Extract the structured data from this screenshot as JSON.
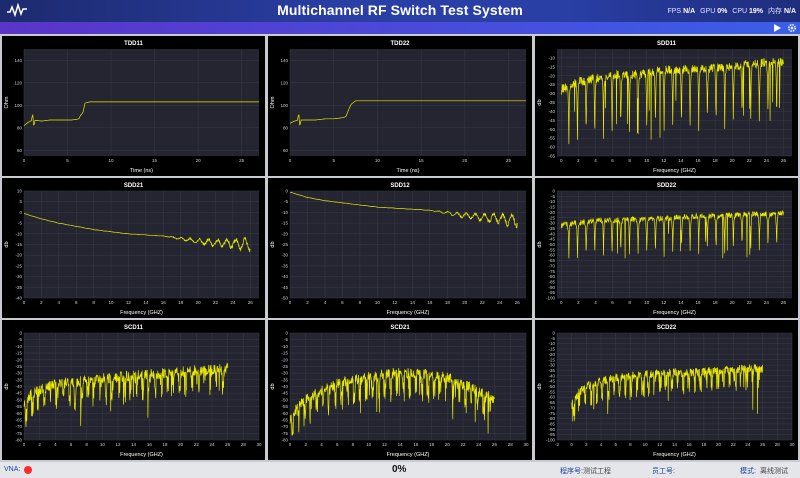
{
  "app": {
    "title": "Multichannel RF Switch Test System",
    "stats": {
      "fps_label": "FPS",
      "fps_value": "N/A",
      "gpu_label": "GPU",
      "gpu_value": "0%",
      "cpu_label": "CPU",
      "cpu_value": "19%",
      "mem_label": "内存",
      "mem_value": "N/A"
    }
  },
  "toolbar": {
    "run_icon": "play-icon",
    "settings_icon": "gear-icon"
  },
  "colors": {
    "trace": "#e8e800",
    "plot_bg": "#242530",
    "panel_bg": "#000000",
    "grid": "#3a3c4a"
  },
  "status": {
    "vna_label": "VNA:",
    "vna_state_color": "#ff2a2a",
    "progress": "0%",
    "serial_label": "程序号:",
    "serial_value": "测试工程",
    "operator_label": "员工号:",
    "operator_value": "",
    "mode_label": "模式:",
    "mode_value": "离线测试"
  },
  "chart_data": [
    {
      "id": "tdd11",
      "type": "line",
      "title": "TDD11",
      "xlabel": "Time (ns)",
      "ylabel": "Ohm",
      "xlim": [
        0,
        27
      ],
      "ylim": [
        55,
        150
      ],
      "xticks": [
        0,
        5,
        10,
        15,
        20,
        25
      ],
      "yticks": [
        60,
        80,
        100,
        120,
        140
      ],
      "series": [
        {
          "profile": "tdd",
          "values": [
            [
              0,
              82
            ],
            [
              0.5,
              85
            ],
            [
              1,
              87
            ],
            [
              2,
              86
            ],
            [
              3,
              87
            ],
            [
              4,
              87
            ],
            [
              5,
              87
            ],
            [
              5.5,
              87
            ],
            [
              6,
              87.5
            ],
            [
              6.3,
              88
            ],
            [
              6.5,
              91
            ],
            [
              6.8,
              94
            ],
            [
              7,
              102
            ],
            [
              7.5,
              103
            ],
            [
              8,
              103
            ],
            [
              10,
              103
            ],
            [
              15,
              103
            ],
            [
              20,
              103
            ],
            [
              27,
              103
            ]
          ]
        }
      ]
    },
    {
      "id": "tdd22",
      "type": "line",
      "title": "TDD22",
      "xlabel": "Time (ns)",
      "ylabel": "Ohm",
      "xlim": [
        0,
        27
      ],
      "ylim": [
        55,
        150
      ],
      "xticks": [
        0,
        5,
        10,
        15,
        20,
        25
      ],
      "yticks": [
        60,
        80,
        100,
        120,
        140
      ],
      "series": [
        {
          "profile": "tdd",
          "values": [
            [
              0,
              84
            ],
            [
              0.5,
              86
            ],
            [
              1,
              87
            ],
            [
              2,
              87
            ],
            [
              3,
              87
            ],
            [
              4,
              88
            ],
            [
              5,
              88
            ],
            [
              6,
              89
            ],
            [
              6.4,
              90
            ],
            [
              6.7,
              96
            ],
            [
              7,
              101
            ],
            [
              7.5,
              104
            ],
            [
              8,
              104
            ],
            [
              10,
              104
            ],
            [
              15,
              104
            ],
            [
              20,
              104
            ],
            [
              27,
              104
            ]
          ]
        }
      ]
    },
    {
      "id": "sdd11",
      "type": "line",
      "title": "SDD11",
      "xlabel": "Frequency (GHZ)",
      "ylabel": "db",
      "xlim": [
        -0.5,
        27
      ],
      "ylim": [
        -65,
        -5
      ],
      "xticks": [
        0,
        2,
        4,
        6,
        8,
        10,
        12,
        14,
        16,
        18,
        20,
        22,
        24,
        26
      ],
      "yticks": [
        -10,
        -15,
        -20,
        -25,
        -30,
        -35,
        -40,
        -45,
        -50,
        -55,
        -60,
        -65
      ],
      "series": [
        {
          "profile": "return-loss",
          "values": [
            [
              0,
              -28
            ],
            [
              2,
              -24
            ],
            [
              4,
              -22
            ],
            [
              6,
              -20
            ],
            [
              8,
              -20
            ],
            [
              10,
              -19
            ],
            [
              12,
              -17
            ],
            [
              14,
              -17
            ],
            [
              16,
              -17
            ],
            [
              18,
              -16
            ],
            [
              20,
              -15
            ],
            [
              22,
              -14
            ],
            [
              24,
              -13
            ],
            [
              26,
              -13
            ]
          ]
        }
      ]
    },
    {
      "id": "sdd21",
      "type": "line",
      "title": "SDD21",
      "xlabel": "Frequency (GHZ)",
      "ylabel": "db",
      "xlim": [
        0,
        27
      ],
      "ylim": [
        -40,
        10
      ],
      "xticks": [
        0,
        2,
        4,
        6,
        8,
        10,
        12,
        14,
        16,
        18,
        20,
        22,
        24,
        26
      ],
      "yticks": [
        10,
        5,
        0,
        -5,
        -10,
        -15,
        -20,
        -25,
        -30,
        -35,
        -40
      ],
      "series": [
        {
          "profile": "insertion-loss",
          "values": [
            [
              0,
              -0.5
            ],
            [
              2,
              -3
            ],
            [
              4,
              -5
            ],
            [
              6,
              -6.5
            ],
            [
              8,
              -8
            ],
            [
              10,
              -9
            ],
            [
              12,
              -10
            ],
            [
              14,
              -10.5
            ],
            [
              16,
              -11
            ],
            [
              18,
              -12
            ],
            [
              20,
              -13
            ],
            [
              22,
              -13.5
            ],
            [
              24,
              -13.5
            ],
            [
              26,
              -14
            ]
          ]
        }
      ]
    },
    {
      "id": "sdd12",
      "type": "line",
      "title": "SDD12",
      "xlabel": "Frequency (GHZ)",
      "ylabel": "db",
      "xlim": [
        0,
        27
      ],
      "ylim": [
        -50,
        0
      ],
      "xticks": [
        0,
        2,
        4,
        6,
        8,
        10,
        12,
        14,
        16,
        18,
        20,
        22,
        24,
        26
      ],
      "yticks": [
        0,
        -5,
        -10,
        -15,
        -20,
        -25,
        -30,
        -35,
        -40,
        -45,
        -50
      ],
      "series": [
        {
          "profile": "insertion-loss",
          "values": [
            [
              0,
              -0.5
            ],
            [
              2,
              -3
            ],
            [
              4,
              -4.5
            ],
            [
              6,
              -5.5
            ],
            [
              8,
              -6.5
            ],
            [
              10,
              -7.5
            ],
            [
              12,
              -8
            ],
            [
              14,
              -8.5
            ],
            [
              16,
              -9
            ],
            [
              18,
              -10
            ],
            [
              20,
              -11
            ],
            [
              22,
              -11.5
            ],
            [
              24,
              -12
            ],
            [
              26,
              -12.5
            ]
          ]
        }
      ]
    },
    {
      "id": "sdd22",
      "type": "line",
      "title": "SDD22",
      "xlabel": "Frequency (GHZ)",
      "ylabel": "db",
      "xlim": [
        -0.5,
        27
      ],
      "ylim": [
        -100,
        0
      ],
      "xticks": [
        0,
        2,
        4,
        6,
        8,
        10,
        12,
        14,
        16,
        18,
        20,
        22,
        24,
        26
      ],
      "yticks": [
        0,
        -5,
        -10,
        -15,
        -20,
        -25,
        -30,
        -35,
        -40,
        -45,
        -50,
        -55,
        -60,
        -65,
        -70,
        -75,
        -80,
        -85,
        -90,
        -95,
        -100
      ],
      "series": [
        {
          "profile": "return-loss",
          "values": [
            [
              0,
              -32
            ],
            [
              2,
              -30
            ],
            [
              4,
              -28
            ],
            [
              6,
              -28
            ],
            [
              8,
              -27
            ],
            [
              10,
              -27
            ],
            [
              12,
              -26
            ],
            [
              14,
              -25
            ],
            [
              16,
              -24
            ],
            [
              18,
              -24
            ],
            [
              20,
              -23
            ],
            [
              22,
              -22
            ],
            [
              24,
              -22
            ],
            [
              26,
              -21
            ]
          ]
        }
      ]
    },
    {
      "id": "scd11",
      "type": "line",
      "title": "SCD11",
      "xlabel": "Frequency (GHZ)",
      "ylabel": "db",
      "xlim": [
        0,
        30
      ],
      "ylim": [
        -80,
        0
      ],
      "xticks": [
        0,
        2,
        4,
        6,
        8,
        10,
        12,
        14,
        16,
        18,
        20,
        22,
        24,
        26,
        28,
        30
      ],
      "yticks": [
        0,
        -5,
        -10,
        -15,
        -20,
        -25,
        -30,
        -35,
        -40,
        -45,
        -50,
        -55,
        -60,
        -65,
        -70,
        -75,
        -80
      ],
      "series": [
        {
          "profile": "mode-conv",
          "values": [
            [
              0,
              -55
            ],
            [
              1,
              -45
            ],
            [
              2,
              -42
            ],
            [
              4,
              -38
            ],
            [
              6,
              -37
            ],
            [
              8,
              -35
            ],
            [
              10,
              -34
            ],
            [
              12,
              -33
            ],
            [
              14,
              -32
            ],
            [
              16,
              -31
            ],
            [
              18,
              -30
            ],
            [
              20,
              -29
            ],
            [
              22,
              -28
            ],
            [
              24,
              -27
            ],
            [
              26,
              -26
            ]
          ]
        }
      ]
    },
    {
      "id": "scd21",
      "type": "line",
      "title": "SCD21",
      "xlabel": "Frequency (GHZ)",
      "ylabel": "db",
      "xlim": [
        0,
        30
      ],
      "ylim": [
        -80,
        0
      ],
      "xticks": [
        0,
        2,
        4,
        6,
        8,
        10,
        12,
        14,
        16,
        18,
        20,
        22,
        24,
        26,
        28,
        30
      ],
      "yticks": [
        0,
        -5,
        -10,
        -15,
        -20,
        -25,
        -30,
        -35,
        -40,
        -45,
        -50,
        -55,
        -60,
        -65,
        -70,
        -75,
        -80
      ],
      "series": [
        {
          "profile": "mode-conv",
          "values": [
            [
              0,
              -65
            ],
            [
              1,
              -55
            ],
            [
              2,
              -50
            ],
            [
              4,
              -43
            ],
            [
              6,
              -38
            ],
            [
              8,
              -35
            ],
            [
              10,
              -33
            ],
            [
              12,
              -31
            ],
            [
              14,
              -30
            ],
            [
              16,
              -30
            ],
            [
              18,
              -31
            ],
            [
              20,
              -33
            ],
            [
              22,
              -38
            ],
            [
              24,
              -44
            ],
            [
              26,
              -49
            ]
          ]
        }
      ]
    },
    {
      "id": "scd22",
      "type": "line",
      "title": "SCD22",
      "xlabel": "Frequency (GHZ)",
      "ylabel": "db",
      "xlim": [
        -2,
        30
      ],
      "ylim": [
        -100,
        0
      ],
      "xticks": [
        -2,
        0,
        2,
        4,
        6,
        8,
        10,
        12,
        14,
        16,
        18,
        20,
        22,
        24,
        26,
        28,
        30
      ],
      "yticks": [
        0,
        -5,
        -10,
        -15,
        -20,
        -25,
        -30,
        -35,
        -40,
        -45,
        -50,
        -55,
        -60,
        -65,
        -70,
        -75,
        -80,
        -85,
        -90,
        -95,
        -100
      ],
      "series": [
        {
          "profile": "mode-conv",
          "values": [
            [
              0,
              -68
            ],
            [
              1,
              -55
            ],
            [
              2,
              -50
            ],
            [
              4,
              -45
            ],
            [
              6,
              -42
            ],
            [
              8,
              -40
            ],
            [
              10,
              -39
            ],
            [
              12,
              -38
            ],
            [
              14,
              -37
            ],
            [
              16,
              -37
            ],
            [
              18,
              -36
            ],
            [
              20,
              -35
            ],
            [
              22,
              -34
            ],
            [
              24,
              -33
            ],
            [
              26,
              -33
            ]
          ]
        }
      ]
    }
  ]
}
